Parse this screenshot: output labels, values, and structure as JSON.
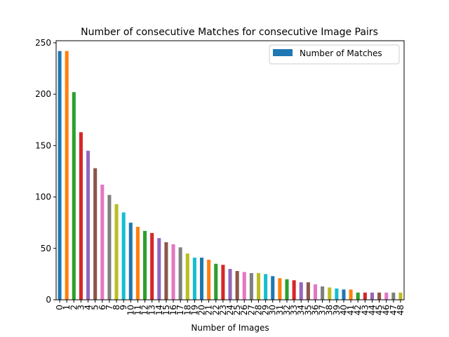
{
  "chart_data": {
    "type": "bar",
    "title": "Number of consecutive Matches for consecutive Image Pairs",
    "xlabel": "Number of Images",
    "ylabel": "",
    "ylim": [
      0,
      252
    ],
    "yticks": [
      0,
      50,
      100,
      150,
      200,
      250
    ],
    "categories": [
      "0",
      "1",
      "2",
      "3",
      "4",
      "5",
      "6",
      "7",
      "8",
      "9",
      "10",
      "11",
      "12",
      "13",
      "14",
      "15",
      "16",
      "17",
      "18",
      "19",
      "20",
      "21",
      "22",
      "23",
      "24",
      "25",
      "26",
      "27",
      "28",
      "29",
      "30",
      "31",
      "32",
      "33",
      "34",
      "35",
      "36",
      "37",
      "38",
      "39",
      "40",
      "41",
      "42",
      "43",
      "44",
      "45",
      "46",
      "47",
      "48"
    ],
    "series": [
      {
        "name": "Number of Matches",
        "values": [
          242,
          242,
          202,
          163,
          145,
          128,
          112,
          102,
          93,
          85,
          75,
          71,
          67,
          65,
          60,
          56,
          54,
          51,
          45,
          41,
          41,
          39,
          35,
          34,
          30,
          28,
          27,
          26,
          26,
          25,
          23,
          21,
          20,
          19,
          17,
          17,
          15,
          13,
          12,
          11,
          10,
          10,
          7,
          7,
          7,
          7,
          7,
          7,
          7
        ]
      }
    ],
    "bar_colors": [
      "#1f77b4",
      "#ff7f0e",
      "#2ca02c",
      "#d62728",
      "#9467bd",
      "#8c564b",
      "#e377c2",
      "#7f7f7f",
      "#bcbd22",
      "#17becf"
    ],
    "legend": {
      "position": "top-right",
      "label": "Number of Matches",
      "color": "#1f77b4"
    },
    "grid": false
  }
}
